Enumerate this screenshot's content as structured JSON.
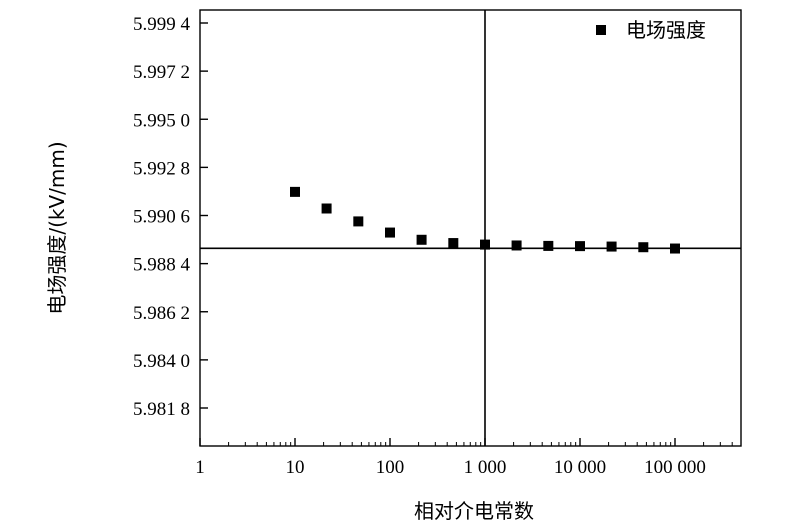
{
  "chart_data": {
    "type": "scatter",
    "title": "",
    "xlabel": "相对介电常数",
    "ylabel": "电场强度/(kV/mm)",
    "x_scale": "log",
    "xlim": [
      1,
      500000
    ],
    "ylim": [
      5.9796,
      5.9998
    ],
    "grid": false,
    "legend_position": "top-right",
    "x_ticks": [
      1,
      10,
      100,
      1000,
      10000,
      100000
    ],
    "x_tick_labels": [
      "1",
      "10",
      "100",
      "1 000",
      "10 000",
      "100 000"
    ],
    "y_ticks": [
      5.9818,
      5.984,
      5.9862,
      5.9884,
      5.9906,
      5.9928,
      5.995,
      5.9972,
      5.9994
    ],
    "y_tick_labels": [
      "5.981 8",
      "5.984 0",
      "5.986 2",
      "5.988 4",
      "5.990 6",
      "5.992 8",
      "5.995 0",
      "5.997 2",
      "5.999 4"
    ],
    "reference_lines": {
      "x": 1000,
      "y": 5.9891
    },
    "series": [
      {
        "name": "电场强度",
        "marker": "square",
        "color": "#000000",
        "points": [
          {
            "x": 10,
            "y": 5.99168
          },
          {
            "x": 21.5,
            "y": 5.99092
          },
          {
            "x": 46.4,
            "y": 5.99033
          },
          {
            "x": 100,
            "y": 5.98982
          },
          {
            "x": 215,
            "y": 5.98949
          },
          {
            "x": 464,
            "y": 5.98934
          },
          {
            "x": 1000,
            "y": 5.98927
          },
          {
            "x": 2150,
            "y": 5.98923
          },
          {
            "x": 4640,
            "y": 5.98921
          },
          {
            "x": 10000,
            "y": 5.9892
          },
          {
            "x": 21500,
            "y": 5.98918
          },
          {
            "x": 46400,
            "y": 5.98915
          },
          {
            "x": 100000,
            "y": 5.98909
          }
        ]
      }
    ]
  }
}
